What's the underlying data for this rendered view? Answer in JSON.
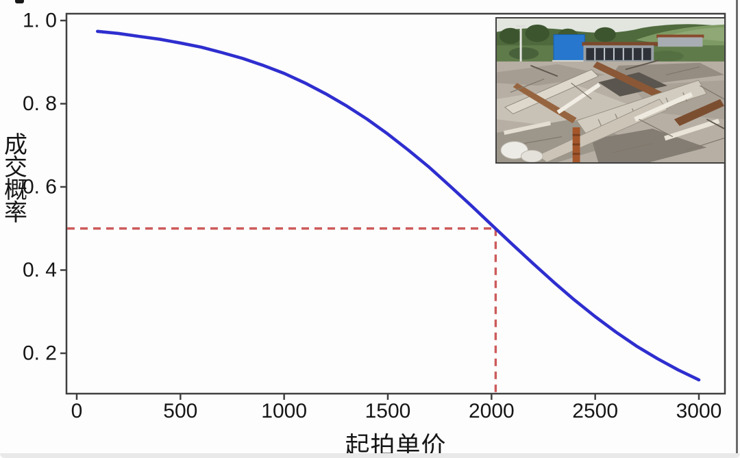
{
  "page": {
    "background": "#fdfdfd",
    "bottom_edge_color": "#e9e9e9",
    "right_edge_color": "#6a6a6a"
  },
  "colors": {
    "curve": "#2e2ecf",
    "dashed": "#cd5b5b",
    "axis": "#3f3f3f",
    "tick_text": "#161616"
  },
  "chart_data": {
    "type": "line",
    "title": "",
    "xlabel": "起拍单价",
    "ylabel": "成交概率",
    "xlim": [
      -50,
      3180
    ],
    "ylim": [
      0.09,
      1.03
    ],
    "grid": false,
    "legend_position": "none",
    "x_ticks": [
      {
        "value": 0,
        "label": "0"
      },
      {
        "value": 500,
        "label": "500"
      },
      {
        "value": 1000,
        "label": "1000"
      },
      {
        "value": 1500,
        "label": "1500"
      },
      {
        "value": 2000,
        "label": "2000"
      },
      {
        "value": 2500,
        "label": "2500"
      },
      {
        "value": 3000,
        "label": "3000"
      }
    ],
    "y_ticks": [
      {
        "value": 1.0,
        "label": "1. 0"
      },
      {
        "value": 0.8,
        "label": "0. 8"
      },
      {
        "value": 0.6,
        "label": "0. 6"
      },
      {
        "value": 0.4,
        "label": "0. 4"
      },
      {
        "value": 0.2,
        "label": "0. 2"
      }
    ],
    "series": [
      {
        "color": "#2e2ecf",
        "points": [
          [
            100,
            0.974
          ],
          [
            200,
            0.969
          ],
          [
            300,
            0.962
          ],
          [
            400,
            0.955
          ],
          [
            500,
            0.946
          ],
          [
            600,
            0.936
          ],
          [
            700,
            0.923
          ],
          [
            800,
            0.909
          ],
          [
            900,
            0.892
          ],
          [
            1000,
            0.873
          ],
          [
            1100,
            0.85
          ],
          [
            1200,
            0.824
          ],
          [
            1300,
            0.795
          ],
          [
            1400,
            0.763
          ],
          [
            1500,
            0.727
          ],
          [
            1600,
            0.688
          ],
          [
            1700,
            0.647
          ],
          [
            1800,
            0.602
          ],
          [
            1900,
            0.556
          ],
          [
            2000,
            0.509
          ],
          [
            2100,
            0.462
          ],
          [
            2200,
            0.416
          ],
          [
            2300,
            0.371
          ],
          [
            2400,
            0.328
          ],
          [
            2500,
            0.288
          ],
          [
            2600,
            0.251
          ],
          [
            2700,
            0.217
          ],
          [
            2800,
            0.187
          ],
          [
            2900,
            0.16
          ],
          [
            3000,
            0.136
          ]
        ]
      }
    ],
    "reference_marker": {
      "x": 2020,
      "y": 0.5,
      "style": "dashed",
      "color": "#cd5b5b"
    },
    "inset_photo": {
      "description": "拆迁废墟照片：蓝色板房、远处绿山与成堆倒塌的建筑废料",
      "position": "top-right"
    }
  }
}
